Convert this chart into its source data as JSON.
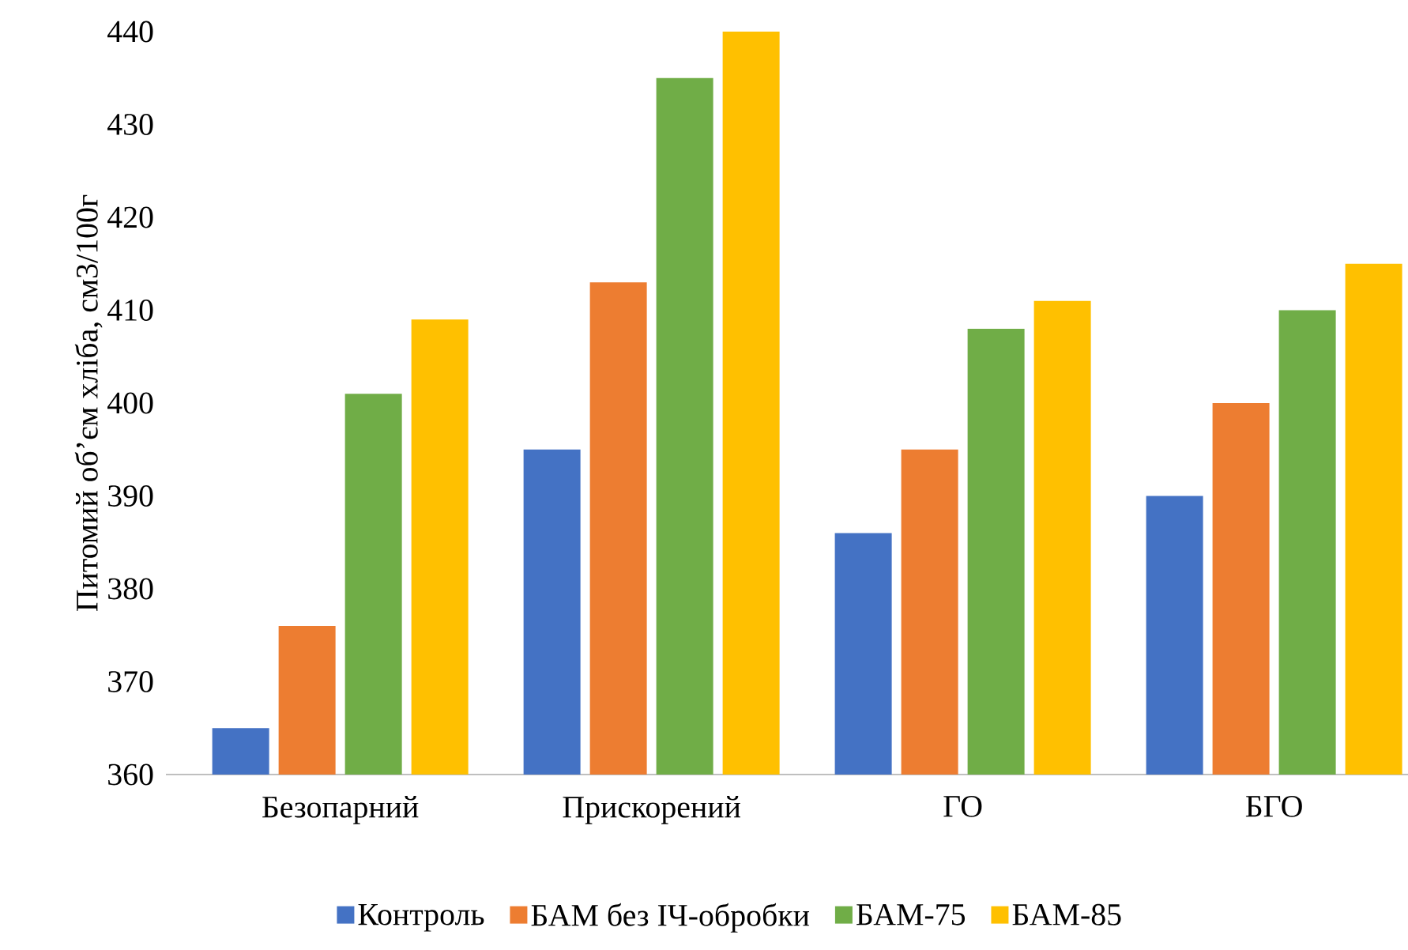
{
  "chart_data": {
    "type": "bar",
    "ylabel": "Питомий об’єм хліба, см3/100г",
    "categories": [
      "Безопарний",
      "Прискорений",
      "ГО",
      "БГО"
    ],
    "series": [
      {
        "name": "Контроль",
        "color": "#4472c4",
        "values": [
          365,
          395,
          386,
          390
        ]
      },
      {
        "name": "БАМ без ІЧ-обробки",
        "color": "#ed7d31",
        "values": [
          376,
          413,
          395,
          400
        ]
      },
      {
        "name": "БАМ-75",
        "color": "#70ad47",
        "values": [
          401,
          435,
          408,
          410
        ]
      },
      {
        "name": "БАМ-85",
        "color": "#ffc000",
        "values": [
          409,
          440,
          411,
          415
        ]
      }
    ],
    "ylim": [
      360,
      440
    ],
    "yticks": [
      360,
      370,
      380,
      390,
      400,
      410,
      420,
      430,
      440
    ],
    "legend": "bottom"
  }
}
